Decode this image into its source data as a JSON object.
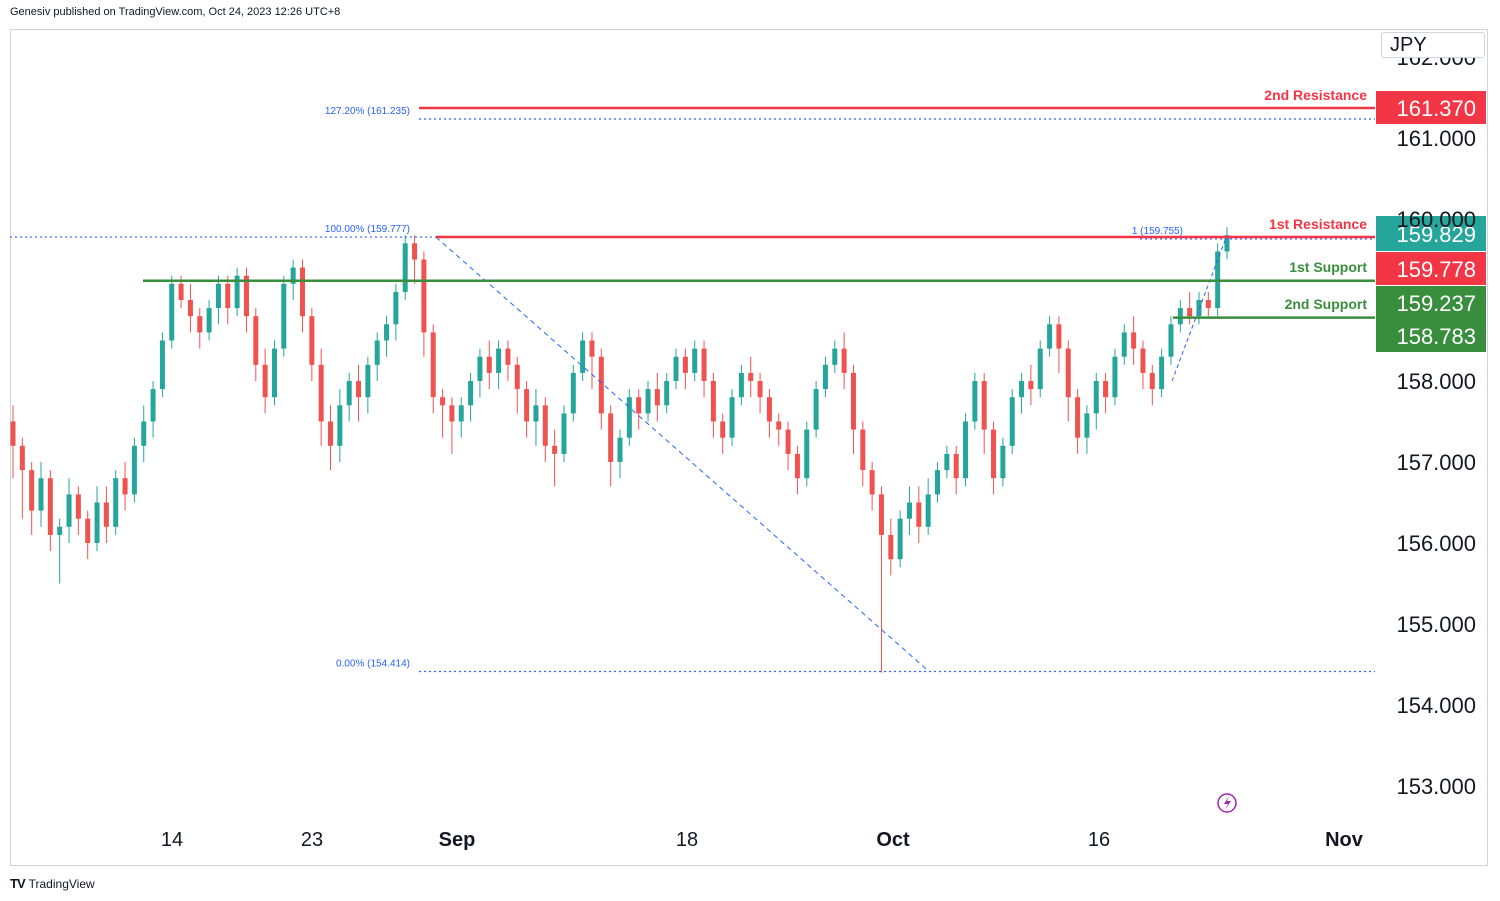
{
  "header": {
    "publisher": "Genesiv published on TradingView.com, Oct 24, 2023 12:26 UTC+8"
  },
  "currency": "JPY",
  "footer": {
    "brand": "TradingView",
    "logo": "TV-logo"
  },
  "colors": {
    "up": "#26a69a",
    "down": "#ef5350",
    "resistance": "#f23645",
    "support": "#388e3c",
    "fib": "#2962ff",
    "axis": "#131722"
  },
  "chart_data": {
    "type": "candlestick",
    "symbol_currency": "JPY",
    "ylim": [
      152.6,
      162.2
    ],
    "y_ticks": [
      "153.000",
      "154.000",
      "155.000",
      "156.000",
      "157.000",
      "158.000",
      "161.000"
    ],
    "y_ticks_partial": [
      "162.000",
      "160.000"
    ],
    "x_ticks": [
      "14",
      "23",
      "Sep",
      "18",
      "Oct",
      "16",
      "Nov"
    ],
    "levels": [
      {
        "name": "2nd Resistance",
        "value": 161.37,
        "label": "161.370",
        "kind": "resistance"
      },
      {
        "name": "1st Resistance",
        "value": 159.778,
        "label": "159.778",
        "kind": "resistance"
      },
      {
        "name": "1st Support",
        "value": 159.237,
        "label": "159.237",
        "kind": "support"
      },
      {
        "name": "2nd Support",
        "value": 158.783,
        "label": "158.783",
        "kind": "support"
      }
    ],
    "current_price": {
      "value": 159.829,
      "label": "159.829"
    },
    "fibonacci": [
      {
        "label": "127.20% (161.235)",
        "value": 161.235
      },
      {
        "label": "100.00% (159.777)",
        "value": 159.777
      },
      {
        "label": "0.00% (154.414)",
        "value": 154.414
      },
      {
        "label": "1 (159.755)",
        "value": 159.755
      }
    ],
    "candles": [
      [
        157.5,
        157.2,
        157.7,
        156.8
      ],
      [
        157.2,
        156.9,
        157.3,
        156.3
      ],
      [
        156.9,
        156.4,
        157.0,
        156.1
      ],
      [
        156.4,
        156.8,
        157.0,
        156.2
      ],
      [
        156.8,
        156.1,
        156.9,
        155.9
      ],
      [
        156.1,
        156.2,
        156.3,
        155.5
      ],
      [
        156.2,
        156.6,
        156.8,
        156.0
      ],
      [
        156.6,
        156.3,
        156.7,
        156.1
      ],
      [
        156.3,
        156.0,
        156.4,
        155.8
      ],
      [
        156.0,
        156.5,
        156.7,
        155.9
      ],
      [
        156.5,
        156.2,
        156.7,
        156.0
      ],
      [
        156.2,
        156.8,
        156.9,
        156.1
      ],
      [
        156.8,
        156.6,
        157.0,
        156.4
      ],
      [
        156.6,
        157.2,
        157.3,
        156.5
      ],
      [
        157.2,
        157.5,
        157.7,
        157.0
      ],
      [
        157.5,
        157.9,
        158.0,
        157.3
      ],
      [
        157.9,
        158.5,
        158.6,
        157.8
      ],
      [
        158.5,
        159.2,
        159.3,
        158.4
      ],
      [
        159.2,
        159.0,
        159.3,
        158.9
      ],
      [
        159.0,
        158.8,
        159.2,
        158.6
      ],
      [
        158.8,
        158.6,
        158.9,
        158.4
      ],
      [
        158.6,
        158.9,
        159.0,
        158.5
      ],
      [
        158.9,
        159.2,
        159.3,
        158.7
      ],
      [
        159.2,
        158.9,
        159.3,
        158.7
      ],
      [
        158.9,
        159.3,
        159.4,
        158.8
      ],
      [
        159.3,
        158.8,
        159.4,
        158.6
      ],
      [
        158.8,
        158.2,
        158.9,
        158.0
      ],
      [
        158.2,
        157.8,
        158.4,
        157.6
      ],
      [
        157.8,
        158.4,
        158.5,
        157.7
      ],
      [
        158.4,
        159.2,
        159.3,
        158.3
      ],
      [
        159.2,
        159.4,
        159.5,
        159.0
      ],
      [
        159.4,
        158.8,
        159.5,
        158.6
      ],
      [
        158.8,
        158.2,
        158.9,
        158.0
      ],
      [
        158.2,
        157.5,
        158.4,
        157.2
      ],
      [
        157.5,
        157.2,
        157.7,
        156.9
      ],
      [
        157.2,
        157.7,
        157.9,
        157.0
      ],
      [
        157.7,
        158.0,
        158.1,
        157.5
      ],
      [
        158.0,
        157.8,
        158.2,
        157.5
      ],
      [
        157.8,
        158.2,
        158.3,
        157.6
      ],
      [
        158.2,
        158.5,
        158.6,
        158.0
      ],
      [
        158.5,
        158.7,
        158.8,
        158.3
      ],
      [
        158.7,
        159.1,
        159.2,
        158.5
      ],
      [
        159.1,
        159.7,
        159.8,
        159.0
      ],
      [
        159.7,
        159.5,
        159.8,
        159.2
      ],
      [
        159.5,
        158.6,
        159.6,
        158.3
      ],
      [
        158.6,
        157.8,
        158.7,
        157.6
      ],
      [
        157.8,
        157.7,
        157.9,
        157.3
      ],
      [
        157.7,
        157.5,
        157.8,
        157.1
      ],
      [
        157.5,
        157.7,
        157.8,
        157.3
      ],
      [
        157.7,
        158.0,
        158.1,
        157.5
      ],
      [
        158.0,
        158.3,
        158.4,
        157.8
      ],
      [
        158.3,
        158.1,
        158.5,
        157.9
      ],
      [
        158.1,
        158.4,
        158.5,
        157.9
      ],
      [
        158.4,
        158.2,
        158.5,
        158.0
      ],
      [
        158.2,
        157.9,
        158.3,
        157.6
      ],
      [
        157.9,
        157.5,
        158.0,
        157.3
      ],
      [
        157.5,
        157.7,
        157.9,
        157.2
      ],
      [
        157.7,
        157.2,
        157.8,
        157.0
      ],
      [
        157.2,
        157.1,
        157.4,
        156.7
      ],
      [
        157.1,
        157.6,
        157.7,
        157.0
      ],
      [
        157.6,
        158.1,
        158.2,
        157.5
      ],
      [
        158.1,
        158.5,
        158.6,
        158.0
      ],
      [
        158.5,
        158.3,
        158.6,
        157.9
      ],
      [
        158.3,
        157.6,
        158.4,
        157.4
      ],
      [
        157.6,
        157.0,
        157.7,
        156.7
      ],
      [
        157.0,
        157.3,
        157.4,
        156.8
      ],
      [
        157.3,
        157.8,
        157.9,
        157.2
      ],
      [
        157.8,
        157.6,
        157.9,
        157.4
      ],
      [
        157.6,
        157.9,
        158.0,
        157.5
      ],
      [
        157.9,
        157.7,
        158.1,
        157.5
      ],
      [
        157.7,
        158.0,
        158.1,
        157.6
      ],
      [
        158.0,
        158.3,
        158.4,
        157.9
      ],
      [
        158.3,
        158.1,
        158.4,
        157.9
      ],
      [
        158.1,
        158.4,
        158.5,
        158.0
      ],
      [
        158.4,
        158.0,
        158.5,
        157.8
      ],
      [
        158.0,
        157.5,
        158.1,
        157.3
      ],
      [
        157.5,
        157.3,
        157.6,
        157.1
      ],
      [
        157.3,
        157.8,
        157.9,
        157.2
      ],
      [
        157.8,
        158.1,
        158.2,
        157.7
      ],
      [
        158.1,
        158.0,
        158.3,
        157.8
      ],
      [
        158.0,
        157.8,
        158.1,
        157.6
      ],
      [
        157.8,
        157.5,
        157.9,
        157.3
      ],
      [
        157.5,
        157.4,
        157.6,
        157.2
      ],
      [
        157.4,
        157.1,
        157.5,
        156.9
      ],
      [
        157.1,
        156.8,
        157.2,
        156.6
      ],
      [
        156.8,
        157.4,
        157.5,
        156.7
      ],
      [
        157.4,
        157.9,
        158.0,
        157.3
      ],
      [
        157.9,
        158.2,
        158.3,
        157.8
      ],
      [
        158.2,
        158.4,
        158.5,
        158.1
      ],
      [
        158.4,
        158.1,
        158.6,
        157.9
      ],
      [
        158.1,
        157.4,
        158.2,
        157.1
      ],
      [
        157.4,
        156.9,
        157.5,
        156.7
      ],
      [
        156.9,
        156.6,
        157.0,
        156.4
      ],
      [
        156.6,
        156.1,
        156.7,
        154.4
      ],
      [
        156.1,
        155.8,
        156.3,
        155.6
      ],
      [
        155.8,
        156.3,
        156.4,
        155.7
      ],
      [
        156.3,
        156.5,
        156.7,
        156.1
      ],
      [
        156.5,
        156.2,
        156.7,
        156.0
      ],
      [
        156.2,
        156.6,
        156.8,
        156.1
      ],
      [
        156.6,
        156.9,
        157.0,
        156.5
      ],
      [
        156.9,
        157.1,
        157.2,
        156.8
      ],
      [
        157.1,
        156.8,
        157.2,
        156.6
      ],
      [
        156.8,
        157.5,
        157.6,
        156.7
      ],
      [
        157.5,
        158.0,
        158.1,
        157.4
      ],
      [
        158.0,
        157.4,
        158.1,
        157.1
      ],
      [
        157.4,
        156.8,
        157.5,
        156.6
      ],
      [
        156.8,
        157.2,
        157.3,
        156.7
      ],
      [
        157.2,
        157.8,
        157.9,
        157.1
      ],
      [
        157.8,
        158.0,
        158.1,
        157.6
      ],
      [
        158.0,
        157.9,
        158.2,
        157.7
      ],
      [
        157.9,
        158.4,
        158.5,
        157.8
      ],
      [
        158.4,
        158.7,
        158.8,
        158.3
      ],
      [
        158.7,
        158.4,
        158.8,
        158.1
      ],
      [
        158.4,
        157.8,
        158.5,
        157.5
      ],
      [
        157.8,
        157.3,
        157.9,
        157.1
      ],
      [
        157.3,
        157.6,
        157.7,
        157.1
      ],
      [
        157.6,
        158.0,
        158.1,
        157.4
      ],
      [
        158.0,
        157.8,
        158.1,
        157.6
      ],
      [
        157.8,
        158.3,
        158.4,
        157.7
      ],
      [
        158.3,
        158.6,
        158.7,
        158.2
      ],
      [
        158.6,
        158.4,
        158.8,
        158.2
      ],
      [
        158.4,
        158.1,
        158.5,
        157.9
      ],
      [
        158.1,
        157.9,
        158.2,
        157.7
      ],
      [
        157.9,
        158.3,
        158.4,
        157.8
      ],
      [
        158.3,
        158.7,
        158.8,
        158.2
      ],
      [
        158.7,
        158.9,
        159.0,
        158.6
      ],
      [
        158.9,
        158.8,
        159.1,
        158.7
      ],
      [
        158.8,
        159.0,
        159.1,
        158.7
      ],
      [
        159.0,
        158.9,
        159.1,
        158.8
      ],
      [
        158.9,
        159.6,
        159.7,
        158.8
      ],
      [
        159.6,
        159.8,
        159.9,
        159.5
      ]
    ]
  }
}
